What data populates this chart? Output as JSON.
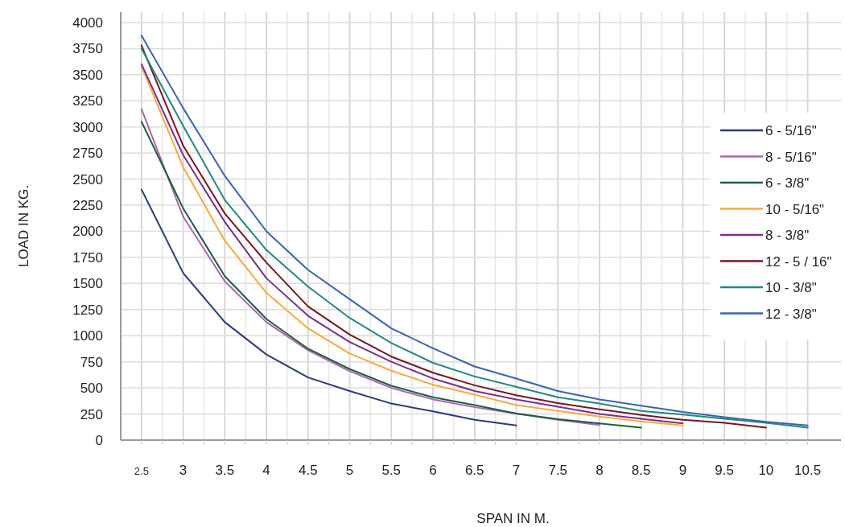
{
  "chart_data": {
    "type": "line",
    "xlabel": "SPAN IN M.",
    "ylabel": "LOAD IN KG.",
    "xlim": [
      2.25,
      10.9
    ],
    "ylim": [
      0,
      4100
    ],
    "xticks": [
      2.5,
      {
        "value": 2.75,
        "label": null
      },
      3,
      {
        "value": 3.25,
        "label": null
      },
      3.5,
      {
        "value": 3.75,
        "label": null
      },
      4,
      {
        "value": 4.25,
        "label": null
      },
      4.5,
      {
        "value": 4.75,
        "label": null
      },
      5,
      {
        "value": 5.25,
        "label": null
      },
      5.5,
      {
        "value": 5.75,
        "label": null
      },
      6,
      {
        "value": 6.25,
        "label": null
      },
      6.5,
      {
        "value": 6.75,
        "label": null
      },
      7,
      {
        "value": 7.25,
        "label": null
      },
      7.5,
      {
        "value": 7.75,
        "label": null
      },
      8,
      {
        "value": 8.25,
        "label": null
      },
      8.5,
      {
        "value": 8.75,
        "label": null
      },
      9,
      {
        "value": 9.25,
        "label": null
      },
      9.5,
      {
        "value": 9.75,
        "label": null
      },
      10,
      {
        "value": 10.25,
        "label": null
      },
      10.5
    ],
    "yticks": [
      0,
      250,
      500,
      750,
      1000,
      1250,
      1500,
      1750,
      2000,
      2250,
      2500,
      2750,
      3000,
      3250,
      3500,
      3750,
      4000
    ],
    "grid": true,
    "legend": "right",
    "marker": "none",
    "line_style": "solid",
    "x": [
      2.5,
      3,
      3.5,
      4,
      4.5,
      5,
      5.5,
      6,
      6.5,
      7,
      7.5,
      8,
      8.5,
      9,
      9.5,
      10,
      10.5
    ],
    "series": [
      {
        "name": "6 - 5/16\"",
        "color": "#2b3a7e",
        "values": [
          2400,
          1600,
          1130,
          820,
          600,
          470,
          350,
          275,
          195,
          140,
          null,
          null,
          null,
          null,
          null,
          null,
          null
        ]
      },
      {
        "name": "8 - 5/16\"",
        "color": "#b064b0",
        "values": [
          3170,
          2140,
          1520,
          1130,
          860,
          660,
          500,
          390,
          315,
          255,
          195,
          145,
          null,
          null,
          null,
          null,
          null
        ]
      },
      {
        "name": "6 - 3/8\"",
        "color": "#1a6040",
        "values": [
          3050,
          2220,
          1570,
          1160,
          875,
          680,
          520,
          410,
          335,
          255,
          200,
          160,
          120,
          null,
          null,
          null,
          null
        ]
      },
      {
        "name": "10 - 5/16\"",
        "color": "#fba93a",
        "values": [
          3580,
          2615,
          1910,
          1410,
          1070,
          830,
          665,
          530,
          435,
          335,
          280,
          225,
          180,
          140,
          null,
          null,
          null
        ]
      },
      {
        "name": "8 - 3/8\"",
        "color": "#7a2e8e",
        "values": [
          3600,
          2730,
          2090,
          1550,
          1190,
          940,
          750,
          590,
          470,
          390,
          320,
          250,
          205,
          160,
          null,
          null,
          null
        ]
      },
      {
        "name": "12 - 5 / 16\"",
        "color": "#7a1420",
        "values": [
          3780,
          2820,
          2170,
          1700,
          1280,
          1010,
          800,
          645,
          525,
          430,
          355,
          295,
          240,
          195,
          165,
          120,
          null
        ]
      },
      {
        "name": "10 - 3/8\"",
        "color": "#1f8a80",
        "values": [
          3750,
          3010,
          2300,
          1820,
          1470,
          1170,
          930,
          740,
          610,
          510,
          410,
          350,
          280,
          245,
          205,
          165,
          120
        ]
      },
      {
        "name": "12 - 3/8\"",
        "color": "#3a62b8",
        "values": [
          3875,
          3180,
          2530,
          2000,
          1630,
          1350,
          1070,
          880,
          705,
          590,
          470,
          390,
          330,
          270,
          220,
          175,
          140
        ]
      }
    ]
  }
}
